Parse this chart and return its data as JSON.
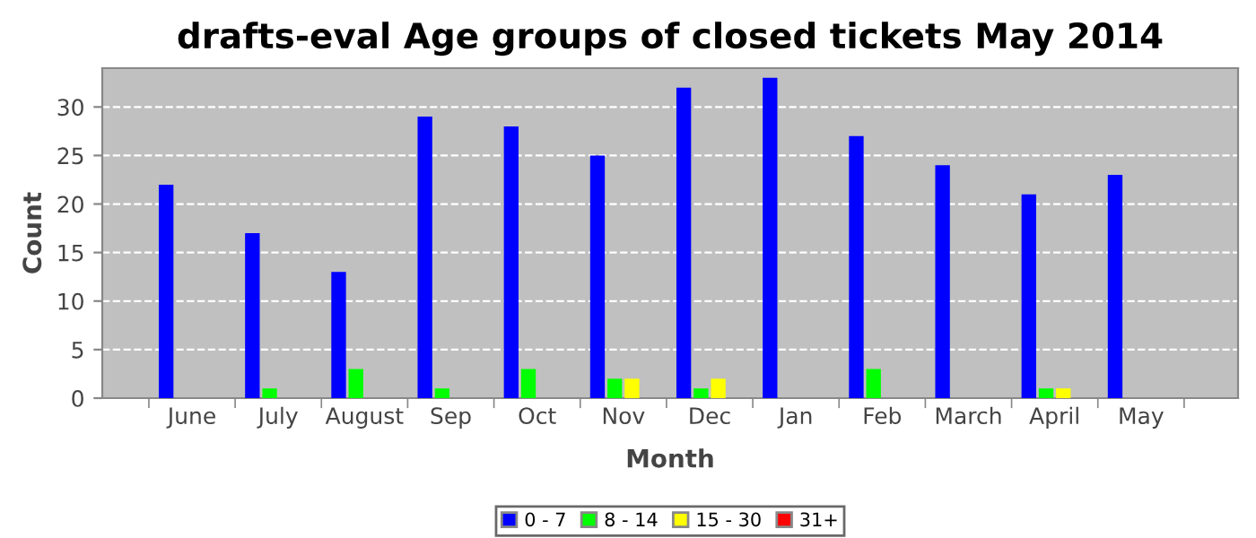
{
  "chart_data": {
    "type": "bar",
    "title": "drafts-eval Age groups of closed tickets May 2014",
    "xlabel": "Month",
    "ylabel": "Count",
    "categories": [
      "June",
      "July",
      "August",
      "Sep",
      "Oct",
      "Nov",
      "Dec",
      "Jan",
      "Feb",
      "March",
      "April",
      "May"
    ],
    "series": [
      {
        "name": "0 - 7",
        "color": "#0000ff",
        "values": [
          22,
          17,
          13,
          29,
          28,
          25,
          32,
          33,
          27,
          24,
          21,
          23
        ]
      },
      {
        "name": "8 - 14",
        "color": "#00ff00",
        "values": [
          0,
          1,
          3,
          1,
          3,
          2,
          1,
          0,
          3,
          0,
          1,
          0
        ]
      },
      {
        "name": "15 - 30",
        "color": "#ffff00",
        "values": [
          0,
          0,
          0,
          0,
          0,
          2,
          2,
          0,
          0,
          0,
          1,
          0
        ]
      },
      {
        "name": "31+",
        "color": "#ff0000",
        "values": [
          0,
          0,
          0,
          0,
          0,
          0,
          0,
          0,
          0,
          0,
          0,
          0
        ]
      }
    ],
    "ylim": [
      0,
      34
    ],
    "yticks": [
      0,
      5,
      10,
      15,
      20,
      25,
      30
    ],
    "grid": "y",
    "legend": "bottom"
  }
}
